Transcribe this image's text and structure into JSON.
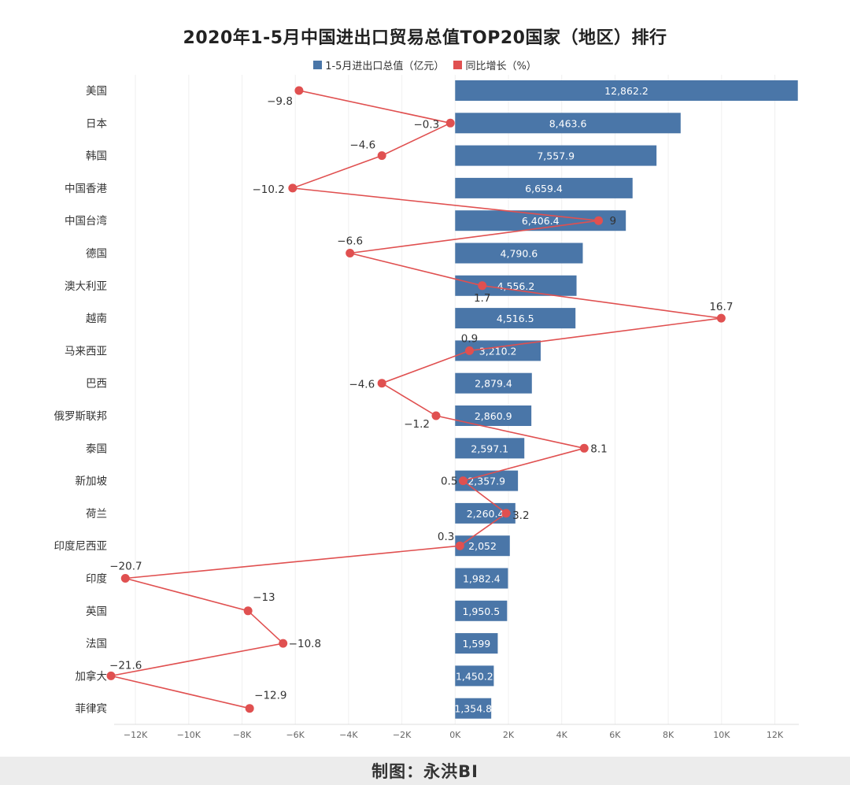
{
  "chart_data": {
    "type": "bar",
    "orientation": "horizontal",
    "title": "2020年1-5月中国进出口贸易总值TOP20国家（地区）排行",
    "categories": [
      "美国",
      "日本",
      "韩国",
      "中国香港",
      "中国台湾",
      "德国",
      "澳大利亚",
      "越南",
      "马来西亚",
      "巴西",
      "俄罗斯联邦",
      "泰国",
      "新加坡",
      "荷兰",
      "印度尼西亚",
      "印度",
      "英国",
      "法国",
      "加拿大",
      "菲律宾"
    ],
    "series": [
      {
        "name": "1-5月进出口总值（亿元）",
        "type": "bar",
        "color": "#4a76a8",
        "values": [
          12862.2,
          8463.6,
          7557.9,
          6659.4,
          6406.4,
          4790.6,
          4556.2,
          4516.5,
          3210.2,
          2879.4,
          2860.9,
          2597.1,
          2357.9,
          2260.4,
          2052,
          1982.4,
          1950.5,
          1599,
          1450.2,
          1354.8
        ],
        "labels": [
          "12,862.2",
          "8,463.6",
          "7,557.9",
          "6,659.4",
          "6,406.4",
          "4,790.6",
          "4,556.2",
          "4,516.5",
          "3,210.2",
          "2,879.4",
          "2,860.9",
          "2,597.1",
          "2,357.9",
          "2,260.4",
          "2,052",
          "1,982.4",
          "1,950.5",
          "1,599",
          "1,450.2",
          "1,354.8"
        ]
      },
      {
        "name": "同比增长（%）",
        "type": "line",
        "color": "#e05050",
        "values": [
          -9.8,
          -0.3,
          -4.6,
          -10.2,
          9,
          -6.6,
          1.7,
          16.7,
          0.9,
          -4.6,
          -1.2,
          8.1,
          0.5,
          3.2,
          0.3,
          -20.7,
          -13,
          -10.8,
          -21.6,
          -12.9
        ],
        "labels": [
          "−9.8",
          "−0.3",
          "−4.6",
          "−10.2",
          "9",
          "−6.6",
          "1.7",
          "16.7",
          "0.9",
          "−4.6",
          "−1.2",
          "8.1",
          "0.5",
          "3.2",
          "0.3",
          "−20.7",
          "−13",
          "−10.8",
          "−21.6",
          "−12.9"
        ]
      }
    ],
    "xlim": [
      -12800,
      12900
    ],
    "xticks": [
      -12000,
      -10000,
      -8000,
      -6000,
      -4000,
      -2000,
      0,
      2000,
      4000,
      6000,
      8000,
      10000,
      12000
    ],
    "xtick_labels": [
      "−12K",
      "−10K",
      "−8K",
      "−6K",
      "−4K",
      "−2K",
      "0K",
      "2K",
      "4K",
      "6K",
      "8K",
      "10K",
      "12K"
    ],
    "growth_scale_note": "同比增长 plotted on shared axis",
    "legend_position": "top-center",
    "grid": true
  },
  "footer": {
    "credit": "制图：永洪BI"
  }
}
